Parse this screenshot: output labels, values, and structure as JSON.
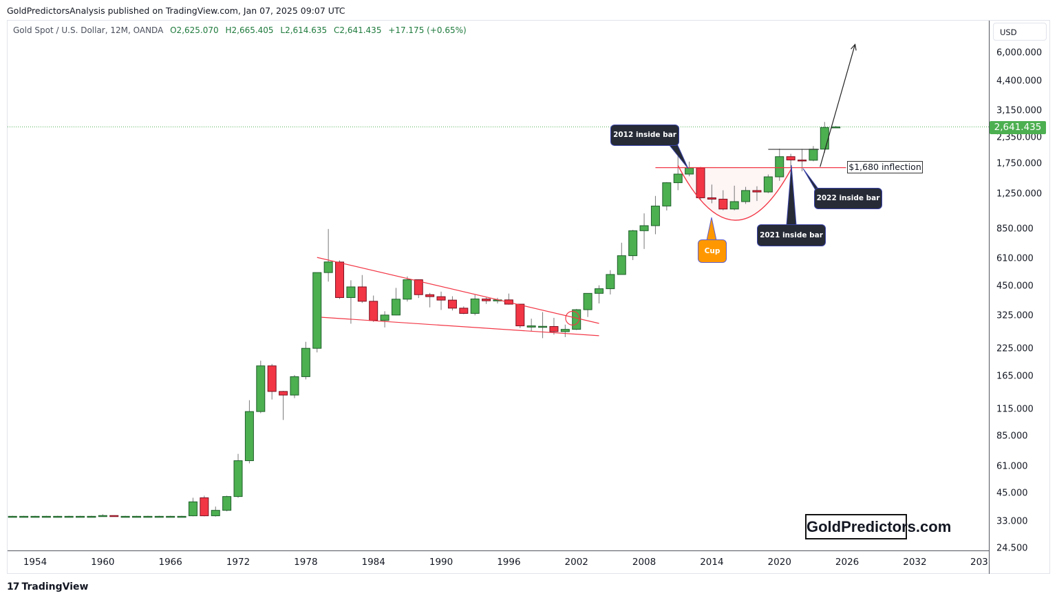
{
  "header": {
    "published": "GoldPredictorsAnalysis published on TradingView.com, Jan 07, 2025 09:07 UTC",
    "symbol": "Gold Spot / U.S. Dollar, 12M, OANDA",
    "open": "O2,625.070",
    "high": "H2,665.405",
    "low": "L2,614.635",
    "close": "C2,641.435",
    "change": "+17.175 (+0.65%)"
  },
  "price_axis": {
    "currency": "USD",
    "last_price": "2,641.435"
  },
  "footer": {
    "brand": "TradingView"
  },
  "watermark": "GoldPredictors.com",
  "annotations": {
    "inside_2012": "2012 inside bar",
    "inside_2021": "2021 inside bar",
    "inside_2022": "2022 inside bar",
    "cup": "Cup",
    "inflection": "$1,680 inflection"
  },
  "colors": {
    "up": "#4caf50",
    "down": "#f23645",
    "trendline": "#f23645",
    "last_price": "#4caf50"
  },
  "chart_data": {
    "type": "candlestick",
    "scale": "log",
    "grid": false,
    "ylim": [
      24.5,
      6800
    ],
    "xlim": [
      1951.6,
      2034.6
    ],
    "y_ticks": [
      "6,000.000",
      "4,400.000",
      "3,150.000",
      "2,350.000",
      "1,750.000",
      "1,250.000",
      "850.000",
      "610.000",
      "450.000",
      "325.000",
      "225.000",
      "165.000",
      "115.000",
      "85.000",
      "61.000",
      "45.000",
      "33.000",
      "24.500"
    ],
    "x_ticks": [
      "1954",
      "1960",
      "1966",
      "1972",
      "1978",
      "1984",
      "1990",
      "1996",
      "2002",
      "2008",
      "2014",
      "2020",
      "2026",
      "2032",
      "203"
    ],
    "candles": [
      [
        1952,
        35,
        35.2,
        34.9,
        35
      ],
      [
        1953,
        35,
        35.2,
        34.9,
        35
      ],
      [
        1954,
        35,
        35.2,
        34.9,
        35
      ],
      [
        1955,
        35,
        35.2,
        34.9,
        35
      ],
      [
        1956,
        35,
        35.2,
        34.9,
        35
      ],
      [
        1957,
        35,
        35.2,
        34.9,
        35
      ],
      [
        1958,
        35,
        35.2,
        34.9,
        35
      ],
      [
        1959,
        35,
        35.2,
        34.9,
        35
      ],
      [
        1960,
        35,
        35.8,
        34.9,
        35.3
      ],
      [
        1961,
        35.3,
        35.4,
        34.9,
        35
      ],
      [
        1962,
        35,
        35.2,
        34.9,
        35
      ],
      [
        1963,
        35,
        35.2,
        34.9,
        35
      ],
      [
        1964,
        35,
        35.2,
        34.9,
        35
      ],
      [
        1965,
        35,
        35.2,
        34.9,
        35
      ],
      [
        1966,
        35,
        35.2,
        34.9,
        35
      ],
      [
        1967,
        35,
        35.2,
        34.9,
        35
      ],
      [
        1968,
        35.2,
        43,
        35,
        41.1
      ],
      [
        1969,
        43,
        44,
        35,
        35.2
      ],
      [
        1970,
        35.2,
        39,
        34.9,
        37.4
      ],
      [
        1971,
        37.4,
        44,
        37,
        43.6
      ],
      [
        1972,
        43.6,
        70,
        43,
        64.9
      ],
      [
        1973,
        64.9,
        127,
        63,
        112
      ],
      [
        1974,
        112,
        197,
        110,
        186
      ],
      [
        1975,
        186,
        190,
        128,
        140
      ],
      [
        1976,
        140,
        141,
        102,
        134.5
      ],
      [
        1977,
        134.5,
        168,
        130,
        164.95
      ],
      [
        1978,
        165,
        243,
        160,
        226
      ],
      [
        1979,
        226,
        524,
        216,
        524
      ],
      [
        1980,
        524,
        850,
        474,
        589.75
      ],
      [
        1981,
        589,
        600,
        391,
        397
      ],
      [
        1982,
        397,
        481,
        297,
        447
      ],
      [
        1983,
        447,
        510,
        374,
        381
      ],
      [
        1984,
        381,
        406,
        303,
        308
      ],
      [
        1985,
        308,
        341,
        285,
        327
      ],
      [
        1986,
        327,
        442,
        326,
        390
      ],
      [
        1987,
        390,
        502,
        380,
        484
      ],
      [
        1988,
        484,
        485,
        395,
        410
      ],
      [
        1989,
        410,
        418,
        356,
        401
      ],
      [
        1990,
        401,
        424,
        346,
        386
      ],
      [
        1991,
        386,
        403,
        344,
        353
      ],
      [
        1992,
        353,
        360,
        330,
        333
      ],
      [
        1993,
        333,
        409,
        326,
        391
      ],
      [
        1994,
        391,
        397,
        370,
        383
      ],
      [
        1995,
        383,
        396,
        372,
        387
      ],
      [
        1996,
        387,
        415,
        367,
        369
      ],
      [
        1997,
        369,
        369,
        283,
        290
      ],
      [
        1998,
        286,
        314,
        273,
        290
      ],
      [
        1999,
        288,
        338,
        253,
        288.5
      ],
      [
        2000,
        288,
        317,
        263,
        272
      ],
      [
        2001,
        272,
        294,
        256,
        279
      ],
      [
        2002,
        279,
        350,
        277,
        347
      ],
      [
        2003,
        347,
        417,
        320,
        416
      ],
      [
        2004,
        416,
        455,
        372,
        438
      ],
      [
        2005,
        438,
        538,
        411,
        513
      ],
      [
        2006,
        513,
        730,
        513,
        632
      ],
      [
        2007,
        632,
        842,
        602,
        834
      ],
      [
        2008,
        834,
        1011,
        681,
        882
      ],
      [
        2009,
        882,
        1227,
        802,
        1097
      ],
      [
        2010,
        1097,
        1431,
        1044,
        1421
      ],
      [
        2011,
        1421,
        1920,
        1308,
        1564
      ],
      [
        2012,
        1564,
        1796,
        1527,
        1675
      ],
      [
        2013,
        1675,
        1694,
        1180,
        1202
      ],
      [
        2014,
        1202,
        1392,
        1131,
        1184
      ],
      [
        2015,
        1184,
        1307,
        1046,
        1061
      ],
      [
        2016,
        1061,
        1375,
        1046,
        1152
      ],
      [
        2017,
        1152,
        1357,
        1123,
        1303
      ],
      [
        2018,
        1303,
        1366,
        1160,
        1282
      ],
      [
        2019,
        1282,
        1557,
        1266,
        1517
      ],
      [
        2020,
        1517,
        2075,
        1451,
        1898
      ],
      [
        2021,
        1898,
        1959,
        1677,
        1829
      ],
      [
        2022,
        1829,
        2070,
        1614,
        1824
      ],
      [
        2023,
        1824,
        2135,
        1804,
        2063
      ],
      [
        2024,
        2063,
        2790,
        1984,
        2624
      ],
      [
        2025,
        2625.07,
        2665.405,
        2614.635,
        2641.435
      ]
    ],
    "drawings": {
      "wedge_upper": [
        [
          1979.0,
          620
        ],
        [
          2004.0,
          298
        ]
      ],
      "wedge_lower": [
        [
          1979.4,
          319
        ],
        [
          2004.0,
          260
        ]
      ],
      "breakout_circle": [
        2001.65,
        316
      ],
      "inflection_line": [
        [
          2009.0,
          1680
        ],
        [
          2025.9,
          1680
        ]
      ],
      "cup_arc": [
        [
          2011.0,
          1720
        ],
        [
          2016.05,
          937
        ],
        [
          2021.1,
          1680
        ]
      ],
      "resistance_line": [
        [
          2019.0,
          2058
        ],
        [
          2023.5,
          2058
        ]
      ],
      "projection_arrow": [
        [
          2023.6,
          1695
        ],
        [
          2026.7,
          6600
        ]
      ]
    }
  }
}
